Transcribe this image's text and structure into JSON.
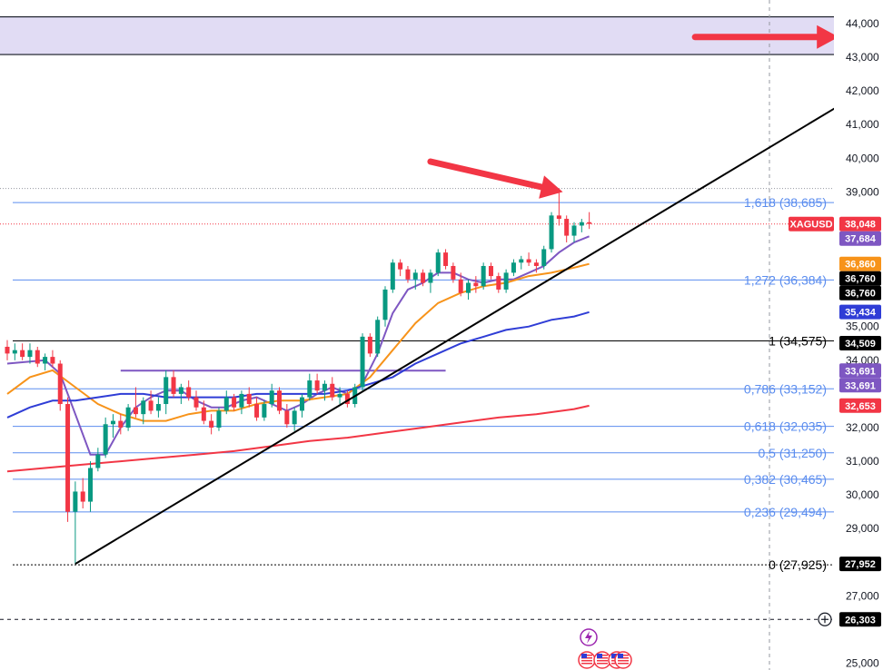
{
  "chart_data": {
    "type": "candlestick",
    "symbol": "XAGUSD",
    "y_axis": {
      "min": 24.8,
      "max": 44.7,
      "ticks": [
        {
          "value": 44,
          "label": "44,000"
        },
        {
          "value": 43,
          "label": "43,000"
        },
        {
          "value": 42,
          "label": "42,000"
        },
        {
          "value": 41,
          "label": "41,000"
        },
        {
          "value": 40,
          "label": "40,000"
        },
        {
          "value": 39,
          "label": "39,000"
        },
        {
          "value": 35,
          "label": "35,000"
        },
        {
          "value": 34,
          "label": "34,000"
        },
        {
          "value": 32,
          "label": "32,000"
        },
        {
          "value": 31,
          "label": "31,000"
        },
        {
          "value": 30,
          "label": "30,000"
        },
        {
          "value": 29,
          "label": "29,000"
        },
        {
          "value": 27,
          "label": "27,000"
        },
        {
          "value": 25,
          "label": "25,000"
        }
      ]
    },
    "resistance_zone": {
      "low": 43.08,
      "high": 44.2,
      "color": "#e1dcf4"
    },
    "fib_levels": [
      {
        "ratio": "1,618",
        "value": 38.685,
        "label": "1,618 (38,685)",
        "color": "#5b8def"
      },
      {
        "ratio": "1,272",
        "value": 36.384,
        "label": "1,272 (36,384)",
        "color": "#5b8def"
      },
      {
        "ratio": "1",
        "value": 34.575,
        "label": "1 (34,575)",
        "color": "#000000"
      },
      {
        "ratio": "0,786",
        "value": 33.152,
        "label": "0,786 (33,152)",
        "color": "#5b8def"
      },
      {
        "ratio": "0,618",
        "value": 32.035,
        "label": "0,618 (32,035)",
        "color": "#5b8def"
      },
      {
        "ratio": "0,5",
        "value": 31.25,
        "label": "0,5 (31,250)",
        "color": "#5b8def"
      },
      {
        "ratio": "0,382",
        "value": 30.465,
        "label": "0,382 (30,465)",
        "color": "#5b8def"
      },
      {
        "ratio": "0,236",
        "value": 29.494,
        "label": "0,236 (29,494)",
        "color": "#5b8def"
      },
      {
        "ratio": "0",
        "value": 27.925,
        "label": "0 (27,925)",
        "color": "#000000"
      }
    ],
    "price_badges": [
      {
        "value": 38.048,
        "label": "38,048",
        "color": "#f23645"
      },
      {
        "value": 37.684,
        "label": "37,684",
        "color": "#7e57c2"
      },
      {
        "value": 36.86,
        "label": "36,860",
        "color": "#f7931a"
      },
      {
        "value": 36.76,
        "label": "36,760",
        "color": "#000000"
      },
      {
        "value": 36.76,
        "label": "36,760",
        "color": "#000000"
      },
      {
        "value": 35.434,
        "label": "35,434",
        "color": "#2f3dd6"
      },
      {
        "value": 34.509,
        "label": "34,509",
        "color": "#000000"
      },
      {
        "value": 33.691,
        "label": "33,691",
        "color": "#7e57c2"
      },
      {
        "value": 33.691,
        "label": "33,691",
        "color": "#7e57c2"
      },
      {
        "value": 32.653,
        "label": "32,653",
        "color": "#f23645"
      },
      {
        "value": 27.952,
        "label": "27,952",
        "color": "#000000"
      },
      {
        "value": 26.303,
        "label": "26,303",
        "color": "#000000"
      }
    ],
    "last_price": 38.048,
    "symbol_tag_color": "#f23645",
    "candles": [
      [
        34.4,
        34.6,
        34.0,
        34.2
      ],
      [
        34.2,
        34.5,
        34.0,
        34.3
      ],
      [
        34.3,
        34.5,
        34.0,
        34.1
      ],
      [
        34.1,
        34.5,
        33.9,
        34.3
      ],
      [
        34.3,
        34.4,
        33.8,
        33.9
      ],
      [
        33.9,
        34.2,
        33.7,
        34.1
      ],
      [
        34.1,
        34.3,
        33.8,
        33.9
      ],
      [
        33.9,
        34.0,
        32.5,
        32.7
      ],
      [
        32.7,
        32.9,
        29.2,
        29.5
      ],
      [
        29.5,
        30.4,
        27.95,
        30.1
      ],
      [
        30.1,
        30.5,
        29.6,
        29.8
      ],
      [
        29.8,
        31.0,
        29.5,
        30.8
      ],
      [
        30.8,
        31.4,
        30.7,
        31.2
      ],
      [
        31.2,
        32.3,
        31.1,
        32.1
      ],
      [
        32.1,
        32.4,
        31.7,
        32.2
      ],
      [
        32.2,
        32.4,
        31.8,
        32.0
      ],
      [
        32.0,
        32.7,
        31.9,
        32.6
      ],
      [
        32.6,
        33.2,
        32.3,
        32.4
      ],
      [
        32.4,
        32.9,
        32.1,
        32.8
      ],
      [
        32.8,
        33.1,
        32.4,
        32.5
      ],
      [
        32.5,
        32.9,
        32.3,
        32.7
      ],
      [
        32.7,
        33.7,
        32.4,
        33.5
      ],
      [
        33.5,
        33.7,
        32.9,
        33.0
      ],
      [
        33.0,
        33.3,
        32.7,
        33.2
      ],
      [
        33.2,
        33.4,
        32.8,
        32.9
      ],
      [
        32.9,
        33.1,
        32.5,
        32.6
      ],
      [
        32.6,
        32.8,
        32.1,
        32.2
      ],
      [
        32.2,
        32.4,
        31.8,
        32.0
      ],
      [
        32.0,
        32.6,
        31.9,
        32.5
      ],
      [
        32.5,
        33.1,
        32.4,
        32.9
      ],
      [
        32.9,
        33.0,
        32.5,
        32.6
      ],
      [
        32.6,
        33.1,
        32.4,
        33.0
      ],
      [
        33.0,
        33.2,
        32.6,
        32.7
      ],
      [
        32.7,
        32.9,
        32.2,
        32.3
      ],
      [
        32.3,
        32.8,
        32.2,
        32.7
      ],
      [
        32.7,
        33.3,
        32.6,
        33.1
      ],
      [
        33.1,
        33.2,
        32.4,
        32.5
      ],
      [
        32.5,
        32.7,
        32.0,
        32.1
      ],
      [
        32.1,
        32.6,
        31.9,
        32.5
      ],
      [
        32.5,
        33.0,
        32.3,
        32.9
      ],
      [
        32.9,
        33.6,
        32.8,
        33.4
      ],
      [
        33.4,
        33.6,
        33.0,
        33.1
      ],
      [
        33.1,
        33.4,
        32.8,
        33.3
      ],
      [
        33.3,
        33.5,
        32.8,
        32.9
      ],
      [
        32.9,
        33.2,
        32.7,
        33.0
      ],
      [
        33.0,
        33.1,
        32.6,
        32.7
      ],
      [
        32.7,
        33.3,
        32.6,
        33.2
      ],
      [
        33.2,
        34.8,
        33.1,
        34.7
      ],
      [
        34.7,
        34.8,
        34.1,
        34.2
      ],
      [
        34.2,
        35.3,
        34.1,
        35.2
      ],
      [
        35.2,
        36.2,
        35.0,
        36.1
      ],
      [
        36.1,
        37.0,
        36.0,
        36.9
      ],
      [
        36.9,
        37.0,
        36.5,
        36.7
      ],
      [
        36.7,
        36.8,
        36.3,
        36.4
      ],
      [
        36.4,
        36.7,
        36.1,
        36.6
      ],
      [
        36.6,
        36.7,
        36.2,
        36.3
      ],
      [
        36.3,
        36.7,
        36.0,
        36.6
      ],
      [
        36.6,
        37.3,
        36.5,
        37.2
      ],
      [
        37.2,
        37.3,
        36.7,
        36.8
      ],
      [
        36.8,
        36.9,
        36.3,
        36.4
      ],
      [
        36.4,
        36.6,
        35.9,
        36.0
      ],
      [
        36.0,
        36.4,
        35.8,
        36.3
      ],
      [
        36.3,
        36.5,
        36.0,
        36.2
      ],
      [
        36.2,
        36.9,
        36.1,
        36.8
      ],
      [
        36.8,
        36.9,
        36.4,
        36.5
      ],
      [
        36.5,
        36.6,
        36.0,
        36.1
      ],
      [
        36.1,
        36.7,
        36.0,
        36.6
      ],
      [
        36.6,
        37.0,
        36.5,
        36.9
      ],
      [
        36.9,
        37.1,
        36.7,
        37.0
      ],
      [
        37.0,
        37.2,
        36.8,
        36.9
      ],
      [
        36.9,
        37.0,
        36.6,
        36.8
      ],
      [
        36.8,
        37.4,
        36.7,
        37.3
      ],
      [
        37.3,
        38.4,
        37.2,
        38.3
      ],
      [
        38.3,
        39.1,
        38.0,
        38.2
      ],
      [
        38.2,
        38.3,
        37.5,
        37.7
      ],
      [
        37.7,
        38.1,
        37.5,
        38.0
      ],
      [
        38.0,
        38.2,
        37.8,
        38.1
      ],
      [
        38.1,
        38.4,
        37.9,
        38.05
      ]
    ],
    "moving_averages": [
      {
        "color": "#7e57c2",
        "points": [
          [
            0,
            33.9
          ],
          [
            5,
            34.0
          ],
          [
            7,
            33.6
          ],
          [
            9,
            32.4
          ],
          [
            11,
            31.2
          ],
          [
            13,
            31.2
          ],
          [
            15,
            32.0
          ],
          [
            17,
            32.6
          ],
          [
            19,
            32.9
          ],
          [
            21,
            33.1
          ],
          [
            23,
            33.1
          ],
          [
            25,
            32.8
          ],
          [
            27,
            32.6
          ],
          [
            29,
            32.6
          ],
          [
            31,
            32.8
          ],
          [
            33,
            32.9
          ],
          [
            35,
            32.7
          ],
          [
            37,
            32.5
          ],
          [
            39,
            32.7
          ],
          [
            41,
            33.0
          ],
          [
            43,
            33.2
          ],
          [
            45,
            33.0
          ],
          [
            47,
            33.3
          ],
          [
            49,
            34.2
          ],
          [
            51,
            35.4
          ],
          [
            53,
            36.1
          ],
          [
            55,
            36.3
          ],
          [
            57,
            36.6
          ],
          [
            59,
            36.6
          ],
          [
            61,
            36.4
          ],
          [
            63,
            36.3
          ],
          [
            65,
            36.4
          ],
          [
            67,
            36.4
          ],
          [
            69,
            36.6
          ],
          [
            71,
            36.8
          ],
          [
            73,
            37.2
          ],
          [
            75,
            37.5
          ],
          [
            77,
            37.68
          ]
        ]
      },
      {
        "color": "#f7931a",
        "points": [
          [
            0,
            33.0
          ],
          [
            3,
            33.5
          ],
          [
            6,
            33.7
          ],
          [
            9,
            33.2
          ],
          [
            12,
            32.7
          ],
          [
            15,
            32.4
          ],
          [
            18,
            32.2
          ],
          [
            21,
            32.2
          ],
          [
            24,
            32.4
          ],
          [
            27,
            32.5
          ],
          [
            30,
            32.5
          ],
          [
            33,
            32.7
          ],
          [
            36,
            32.8
          ],
          [
            39,
            32.8
          ],
          [
            42,
            32.9
          ],
          [
            45,
            33.0
          ],
          [
            48,
            33.5
          ],
          [
            51,
            34.3
          ],
          [
            54,
            35.1
          ],
          [
            57,
            35.7
          ],
          [
            60,
            36.0
          ],
          [
            63,
            36.2
          ],
          [
            66,
            36.3
          ],
          [
            69,
            36.5
          ],
          [
            72,
            36.6
          ],
          [
            75,
            36.75
          ],
          [
            77,
            36.86
          ]
        ]
      },
      {
        "color": "#2f3dd6",
        "points": [
          [
            0,
            32.3
          ],
          [
            3,
            32.6
          ],
          [
            6,
            32.8
          ],
          [
            9,
            32.8
          ],
          [
            12,
            32.9
          ],
          [
            15,
            33.0
          ],
          [
            18,
            33.0
          ],
          [
            21,
            32.9
          ],
          [
            24,
            32.9
          ],
          [
            27,
            32.9
          ],
          [
            30,
            32.9
          ],
          [
            33,
            33.0
          ],
          [
            36,
            33.0
          ],
          [
            39,
            33.0
          ],
          [
            42,
            33.0
          ],
          [
            45,
            33.1
          ],
          [
            48,
            33.3
          ],
          [
            51,
            33.5
          ],
          [
            54,
            33.9
          ],
          [
            57,
            34.2
          ],
          [
            60,
            34.5
          ],
          [
            63,
            34.7
          ],
          [
            66,
            34.9
          ],
          [
            69,
            35.0
          ],
          [
            72,
            35.2
          ],
          [
            75,
            35.3
          ],
          [
            77,
            35.43
          ]
        ]
      },
      {
        "color": "#f23645",
        "points": [
          [
            0,
            30.7
          ],
          [
            5,
            30.8
          ],
          [
            10,
            30.9
          ],
          [
            15,
            31.0
          ],
          [
            20,
            31.1
          ],
          [
            25,
            31.2
          ],
          [
            30,
            31.3
          ],
          [
            35,
            31.45
          ],
          [
            40,
            31.6
          ],
          [
            45,
            31.7
          ],
          [
            50,
            31.85
          ],
          [
            55,
            32.0
          ],
          [
            60,
            32.15
          ],
          [
            65,
            32.3
          ],
          [
            70,
            32.4
          ],
          [
            75,
            32.55
          ],
          [
            77,
            32.65
          ]
        ]
      }
    ],
    "trendline": {
      "from": [
        9,
        27.952
      ],
      "to": [
        109.6,
        41.5
      ],
      "color": "#000000"
    },
    "horizontal_lines": [
      {
        "from": 15,
        "to": 58,
        "value": 33.691,
        "color": "#7e57c2"
      }
    ],
    "annotation_arrows": [
      {
        "from": [
          91,
          43.6
        ],
        "to": [
          110,
          43.6
        ],
        "color": "#f23645"
      },
      {
        "from": [
          56,
          39.9
        ],
        "to": [
          73.5,
          39.0
        ],
        "color": "#f23645"
      }
    ],
    "dashed_lines": [
      {
        "value": 26.303,
        "color": "#131722"
      }
    ],
    "dotted_lines": [
      {
        "value": 39.1,
        "color": "#9598a1"
      }
    ],
    "event_icons": {
      "lightning": "lightning-icon",
      "flags": "us-flag-icon"
    }
  }
}
